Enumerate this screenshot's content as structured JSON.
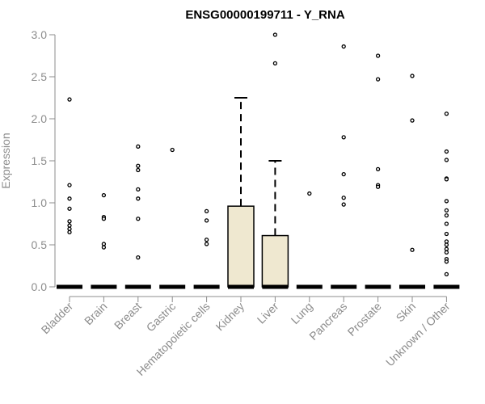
{
  "chart_data": {
    "type": "box",
    "title": "ENSG00000199711 - Y_RNA",
    "ylabel": "Expression",
    "xlabel": "",
    "ylim": [
      0,
      3.0
    ],
    "yticks": [
      "0.0",
      "0.5",
      "1.0",
      "1.5",
      "2.0",
      "2.5",
      "3.0"
    ],
    "categories": [
      "Bladder",
      "Brain",
      "Breast",
      "Gastric",
      "Hematopoietic cells",
      "Kidney",
      "Liver",
      "Lung",
      "Pancreas",
      "Prostate",
      "Skin",
      "Unknown / Other"
    ],
    "boxes": [
      {
        "category": "Bladder",
        "q1": 0,
        "median": 0,
        "q3": 0,
        "whisker_low": 0,
        "whisker_high": 0,
        "outliers": [
          2.23,
          1.21,
          1.05,
          0.93,
          0.78,
          0.73,
          0.69,
          0.65
        ]
      },
      {
        "category": "Brain",
        "q1": 0,
        "median": 0,
        "q3": 0,
        "whisker_low": 0,
        "whisker_high": 0,
        "outliers": [
          1.09,
          0.83,
          0.81,
          0.51,
          0.47
        ]
      },
      {
        "category": "Breast",
        "q1": 0,
        "median": 0,
        "q3": 0,
        "whisker_low": 0,
        "whisker_high": 0,
        "outliers": [
          1.67,
          1.44,
          1.39,
          1.16,
          1.05,
          0.81,
          0.35
        ]
      },
      {
        "category": "Gastric",
        "q1": 0,
        "median": 0,
        "q3": 0,
        "whisker_low": 0,
        "whisker_high": 0,
        "outliers": [
          1.63
        ]
      },
      {
        "category": "Hematopoietic cells",
        "q1": 0,
        "median": 0,
        "q3": 0,
        "whisker_low": 0,
        "whisker_high": 0,
        "outliers": [
          0.9,
          0.79,
          0.56,
          0.51
        ]
      },
      {
        "category": "Kidney",
        "q1": 0,
        "median": 0,
        "q3": 0.96,
        "whisker_low": 0,
        "whisker_high": 2.25,
        "outliers": []
      },
      {
        "category": "Liver",
        "q1": 0,
        "median": 0,
        "q3": 0.61,
        "whisker_low": 0,
        "whisker_high": 1.5,
        "outliers": [
          3.0,
          2.66
        ]
      },
      {
        "category": "Lung",
        "q1": 0,
        "median": 0,
        "q3": 0,
        "whisker_low": 0,
        "whisker_high": 0,
        "outliers": [
          1.11
        ]
      },
      {
        "category": "Pancreas",
        "q1": 0,
        "median": 0,
        "q3": 0,
        "whisker_low": 0,
        "whisker_high": 0,
        "outliers": [
          2.86,
          1.78,
          1.34,
          1.06,
          0.98
        ]
      },
      {
        "category": "Prostate",
        "q1": 0,
        "median": 0,
        "q3": 0,
        "whisker_low": 0,
        "whisker_high": 0,
        "outliers": [
          2.75,
          2.47,
          1.4,
          1.21,
          1.19
        ]
      },
      {
        "category": "Skin",
        "q1": 0,
        "median": 0,
        "q3": 0,
        "whisker_low": 0,
        "whisker_high": 0,
        "outliers": [
          2.51,
          1.98,
          0.44
        ]
      },
      {
        "category": "Unknown / Other",
        "q1": 0,
        "median": 0,
        "q3": 0,
        "whisker_low": 0,
        "whisker_high": 0,
        "outliers": [
          2.06,
          1.61,
          1.51,
          1.29,
          1.28,
          1.02,
          0.91,
          0.85,
          0.75,
          0.63,
          0.54,
          0.5,
          0.45,
          0.41,
          0.33,
          0.3,
          0.15
        ]
      }
    ],
    "grid": false,
    "legend": "none",
    "colors": {
      "box_fill": "#efe8d0",
      "box_stroke": "#000000",
      "axis": "#8c8c8c",
      "text": "#8c8c8c",
      "title": "#000000"
    }
  }
}
